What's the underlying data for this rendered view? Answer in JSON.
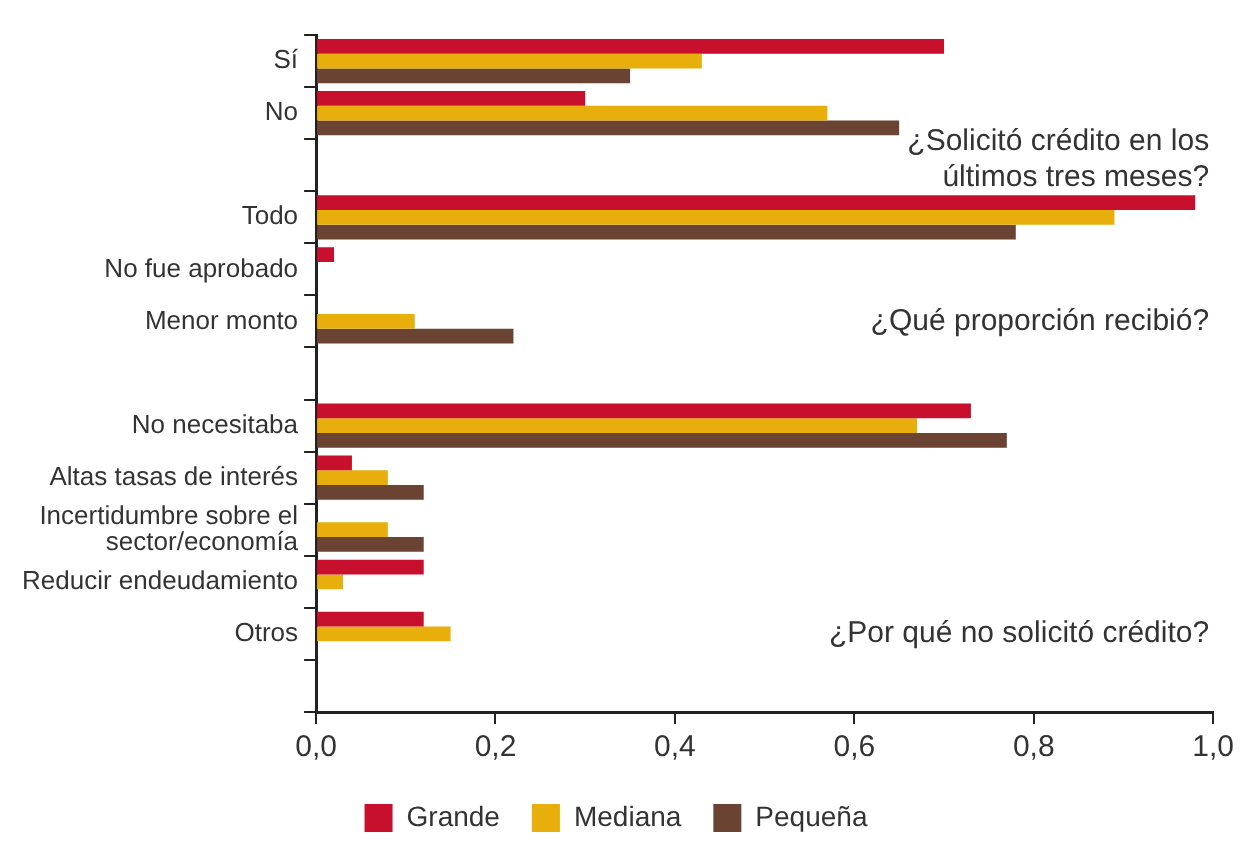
{
  "chart_data": {
    "type": "bar",
    "orientation": "horizontal",
    "categories": [
      "Sí",
      "No",
      null,
      "Todo",
      "No fue aprobado",
      "Menor monto",
      null,
      "No necesitaba",
      "Altas tasas de interés",
      "Incertidumbre sobre el\nsector/economía",
      "Reducir endeudamiento",
      "Otros",
      null
    ],
    "series": [
      {
        "name": "Grande",
        "color": "#c8102e",
        "values": [
          0.7,
          0.3,
          null,
          0.98,
          0.02,
          null,
          null,
          0.73,
          0.04,
          null,
          0.12,
          0.12,
          null
        ]
      },
      {
        "name": "Mediana",
        "color": "#e8ae0c",
        "values": [
          0.43,
          0.57,
          null,
          0.89,
          null,
          0.11,
          null,
          0.67,
          0.08,
          0.08,
          0.03,
          0.15,
          null
        ]
      },
      {
        "name": "Pequeña",
        "color": "#6b4332",
        "values": [
          0.35,
          0.65,
          null,
          0.78,
          null,
          0.22,
          null,
          0.77,
          0.12,
          0.12,
          null,
          null,
          null
        ]
      }
    ],
    "xlim": [
      0,
      1
    ],
    "xticks": [
      {
        "value": 0,
        "label": "0,0"
      },
      {
        "value": 0.2,
        "label": "0,2"
      },
      {
        "value": 0.4,
        "label": "0,4"
      },
      {
        "value": 0.6,
        "label": "0,6"
      },
      {
        "value": 0.8,
        "label": "0,8"
      },
      {
        "value": 1,
        "label": "1,0"
      }
    ],
    "annotations": [
      "¿Solicitó crédito en los\núltimos tres meses?",
      "¿Qué proporción recibió?",
      "¿Por qué no solicitó crédito?"
    ],
    "grid": false,
    "legend": "bottom"
  }
}
